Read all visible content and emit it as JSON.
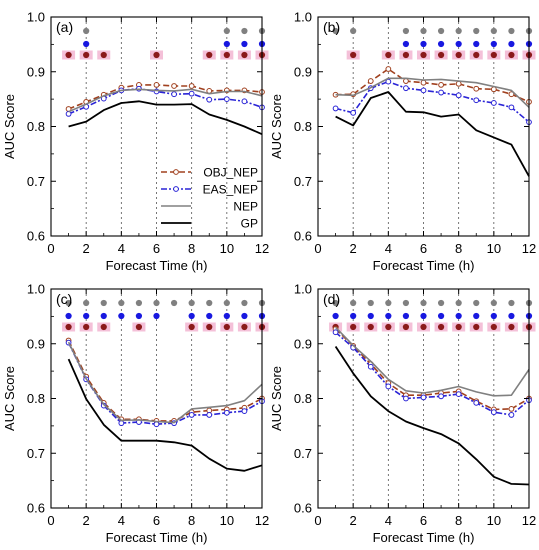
{
  "figure": {
    "legend_panel_index": 0
  },
  "colors": {
    "OBJ_NEP": "#a0401e",
    "EAS_NEP": "#2a24d6",
    "NEP": "#808080",
    "GP": "#000000",
    "dot_grey": "#808080",
    "dot_blue": "#1818e0",
    "dot_brown": "#8b1a1a",
    "dot_highlight": "#f4c0d8"
  },
  "legend": {
    "entries": [
      {
        "key": "OBJ_NEP",
        "label": "OBJ_NEP",
        "style": "dash_circle"
      },
      {
        "key": "EAS_NEP",
        "label": "EAS_NEP",
        "style": "dashdot_circle"
      },
      {
        "key": "NEP",
        "label": "NEP",
        "style": "solid"
      },
      {
        "key": "GP",
        "label": "GP",
        "style": "solid_thick"
      }
    ]
  },
  "chart_data": [
    {
      "type": "line",
      "panel_label": "(a)",
      "xlabel": "Forecast Time (h)",
      "ylabel": "AUC Score",
      "xlim": [
        0,
        12
      ],
      "ylim": [
        0.6,
        1.0
      ],
      "xticks": [
        "0",
        "2",
        "4",
        "6",
        "8",
        "10",
        "12"
      ],
      "yticks": [
        "0.6",
        "0.7",
        "0.8",
        "0.9",
        "1.0"
      ],
      "x": [
        1,
        2,
        3,
        4,
        5,
        6,
        7,
        8,
        9,
        10,
        11,
        12
      ],
      "series": [
        {
          "name": "OBJ_NEP",
          "values": [
            0.832,
            0.845,
            0.858,
            0.871,
            0.876,
            0.876,
            0.874,
            0.874,
            0.865,
            0.866,
            0.866,
            0.863
          ]
        },
        {
          "name": "EAS_NEP",
          "values": [
            0.823,
            0.836,
            0.851,
            0.866,
            0.869,
            0.864,
            0.859,
            0.86,
            0.849,
            0.85,
            0.846,
            0.835
          ]
        },
        {
          "name": "NEP",
          "values": [
            0.827,
            0.841,
            0.856,
            0.866,
            0.868,
            0.866,
            0.865,
            0.868,
            0.86,
            0.864,
            0.864,
            0.856
          ]
        },
        {
          "name": "GP",
          "values": [
            0.8,
            0.809,
            0.83,
            0.843,
            0.846,
            0.84,
            0.84,
            0.841,
            0.822,
            0.812,
            0.8,
            0.786
          ]
        }
      ],
      "significance": {
        "grey": [
          2,
          10,
          11,
          12
        ],
        "blue": [
          2,
          10,
          11,
          12
        ],
        "brown": [
          1,
          2,
          3,
          6,
          9,
          10,
          11,
          12
        ]
      },
      "grid": "vertical dotted"
    },
    {
      "type": "line",
      "panel_label": "(b)",
      "xlabel": "Forecast Time (h)",
      "ylabel": "AUC Score",
      "xlim": [
        0,
        12
      ],
      "ylim": [
        0.6,
        1.0
      ],
      "xticks": [
        "0",
        "2",
        "4",
        "6",
        "8",
        "10",
        "12"
      ],
      "yticks": [
        "0.6",
        "0.7",
        "0.8",
        "0.9",
        "1.0"
      ],
      "x": [
        1,
        2,
        3,
        4,
        5,
        6,
        7,
        8,
        9,
        10,
        11,
        12
      ],
      "series": [
        {
          "name": "OBJ_NEP",
          "values": [
            0.858,
            0.859,
            0.883,
            0.905,
            0.883,
            0.88,
            0.876,
            0.878,
            0.869,
            0.868,
            0.859,
            0.845
          ]
        },
        {
          "name": "EAS_NEP",
          "values": [
            0.833,
            0.825,
            0.87,
            0.882,
            0.87,
            0.866,
            0.862,
            0.857,
            0.848,
            0.843,
            0.835,
            0.808
          ]
        },
        {
          "name": "NEP",
          "values": [
            0.858,
            0.857,
            0.871,
            0.888,
            0.888,
            0.885,
            0.886,
            0.883,
            0.88,
            0.873,
            0.866,
            0.835
          ]
        },
        {
          "name": "GP",
          "values": [
            0.818,
            0.802,
            0.852,
            0.863,
            0.827,
            0.826,
            0.818,
            0.822,
            0.793,
            0.78,
            0.767,
            0.709
          ]
        }
      ],
      "significance": {
        "grey": [
          1,
          2,
          5,
          6,
          7,
          8,
          9,
          10,
          11,
          12
        ],
        "blue": [
          5,
          6,
          7,
          8,
          9,
          10,
          11,
          12
        ],
        "brown": [
          2,
          4,
          5,
          6,
          7,
          8,
          9,
          10,
          11,
          12
        ]
      },
      "grid": "vertical dotted"
    },
    {
      "type": "line",
      "panel_label": "(c)",
      "xlabel": "Forecast Time (h)",
      "ylabel": "AUC Score",
      "xlim": [
        0,
        12
      ],
      "ylim": [
        0.6,
        1.0
      ],
      "xticks": [
        "0",
        "2",
        "4",
        "6",
        "8",
        "10",
        "12"
      ],
      "yticks": [
        "0.6",
        "0.7",
        "0.8",
        "0.9",
        "1.0"
      ],
      "x": [
        1,
        2,
        3,
        4,
        5,
        6,
        7,
        8,
        9,
        10,
        11,
        12
      ],
      "series": [
        {
          "name": "OBJ_NEP",
          "values": [
            0.906,
            0.84,
            0.792,
            0.762,
            0.762,
            0.759,
            0.759,
            0.775,
            0.778,
            0.78,
            0.783,
            0.8
          ]
        },
        {
          "name": "EAS_NEP",
          "values": [
            0.902,
            0.835,
            0.787,
            0.755,
            0.757,
            0.753,
            0.755,
            0.77,
            0.77,
            0.774,
            0.777,
            0.795
          ]
        },
        {
          "name": "NEP",
          "values": [
            0.903,
            0.836,
            0.789,
            0.76,
            0.761,
            0.758,
            0.756,
            0.781,
            0.784,
            0.787,
            0.796,
            0.826
          ]
        },
        {
          "name": "GP",
          "values": [
            0.872,
            0.799,
            0.752,
            0.723,
            0.723,
            0.723,
            0.72,
            0.714,
            0.69,
            0.672,
            0.668,
            0.678
          ]
        }
      ],
      "significance": {
        "grey": [
          1,
          2,
          3,
          4,
          5,
          6,
          7,
          8,
          9,
          10,
          11,
          12
        ],
        "blue": [
          1,
          2,
          3,
          4,
          5,
          6,
          8,
          9,
          10,
          11,
          12
        ],
        "brown": [
          1,
          2,
          3,
          5,
          8,
          9,
          10,
          11,
          12
        ]
      },
      "grid": "vertical dotted"
    },
    {
      "type": "line",
      "panel_label": "(d)",
      "xlabel": "Forecast Time (h)",
      "ylabel": "AUC Score",
      "xlim": [
        0,
        12
      ],
      "ylim": [
        0.6,
        1.0
      ],
      "xticks": [
        "0",
        "2",
        "4",
        "6",
        "8",
        "10",
        "12"
      ],
      "yticks": [
        "0.6",
        "0.7",
        "0.8",
        "0.9",
        "1.0"
      ],
      "x": [
        1,
        2,
        3,
        4,
        5,
        6,
        7,
        8,
        9,
        10,
        11,
        12
      ],
      "series": [
        {
          "name": "OBJ_NEP",
          "values": [
            0.927,
            0.896,
            0.863,
            0.828,
            0.806,
            0.806,
            0.81,
            0.813,
            0.795,
            0.78,
            0.781,
            0.8
          ]
        },
        {
          "name": "EAS_NEP",
          "values": [
            0.921,
            0.893,
            0.858,
            0.822,
            0.8,
            0.802,
            0.804,
            0.808,
            0.792,
            0.775,
            0.77,
            0.797
          ]
        },
        {
          "name": "NEP",
          "values": [
            0.93,
            0.897,
            0.868,
            0.835,
            0.814,
            0.81,
            0.815,
            0.822,
            0.812,
            0.805,
            0.806,
            0.853
          ]
        },
        {
          "name": "GP",
          "values": [
            0.895,
            0.846,
            0.804,
            0.777,
            0.758,
            0.746,
            0.735,
            0.718,
            0.689,
            0.657,
            0.644,
            0.643
          ]
        }
      ],
      "significance": {
        "grey": [
          1,
          2,
          3,
          4,
          5,
          6,
          7,
          8,
          9,
          10,
          11,
          12
        ],
        "blue": [
          1,
          2,
          3,
          4,
          5,
          6,
          7,
          8,
          9,
          10,
          11,
          12
        ],
        "brown": [
          1,
          2,
          3,
          4,
          5,
          6,
          7,
          8,
          9,
          10,
          11,
          12
        ]
      },
      "grid": "vertical dotted"
    }
  ]
}
